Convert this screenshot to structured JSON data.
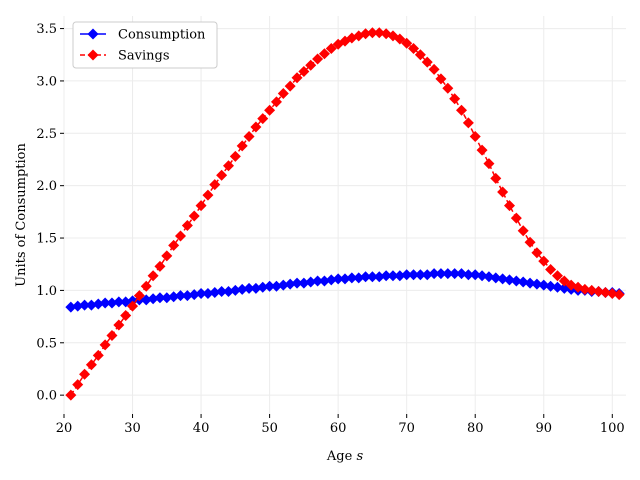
{
  "chart_data": {
    "type": "line",
    "xlabel_text": "Age ",
    "xlabel_var": "s",
    "ylabel": "Units of Consumption",
    "xlim": [
      20,
      102
    ],
    "ylim": [
      -0.18,
      3.62
    ],
    "xticks": [
      20,
      30,
      40,
      50,
      60,
      70,
      80,
      90,
      100
    ],
    "yticks": [
      0.0,
      0.5,
      1.0,
      1.5,
      2.0,
      2.5,
      3.0,
      3.5
    ],
    "ytick_labels": [
      "0.0",
      "0.5",
      "1.0",
      "1.5",
      "2.0",
      "2.5",
      "3.0",
      "3.5"
    ],
    "grid": true,
    "legend_position": "top-left",
    "x_ages": [
      21,
      22,
      23,
      24,
      25,
      26,
      27,
      28,
      29,
      30,
      31,
      32,
      33,
      34,
      35,
      36,
      37,
      38,
      39,
      40,
      41,
      42,
      43,
      44,
      45,
      46,
      47,
      48,
      49,
      50,
      51,
      52,
      53,
      54,
      55,
      56,
      57,
      58,
      59,
      60,
      61,
      62,
      63,
      64,
      65,
      66,
      67,
      68,
      69,
      70,
      71,
      72,
      73,
      74,
      75,
      76,
      77,
      78,
      79,
      80,
      81,
      82,
      83,
      84,
      85,
      86,
      87,
      88,
      89,
      90,
      91,
      92,
      93,
      94,
      95,
      96,
      97,
      98,
      99,
      100,
      101
    ],
    "series": [
      {
        "name": "Consumption",
        "color": "#0000ff",
        "linestyle": "solid",
        "marker": "diamond",
        "values": [
          0.84,
          0.85,
          0.86,
          0.86,
          0.87,
          0.88,
          0.88,
          0.89,
          0.89,
          0.9,
          0.91,
          0.91,
          0.92,
          0.93,
          0.93,
          0.94,
          0.95,
          0.95,
          0.96,
          0.97,
          0.97,
          0.98,
          0.99,
          0.99,
          1.0,
          1.01,
          1.02,
          1.02,
          1.03,
          1.04,
          1.04,
          1.05,
          1.06,
          1.07,
          1.07,
          1.08,
          1.09,
          1.09,
          1.1,
          1.11,
          1.11,
          1.12,
          1.12,
          1.13,
          1.13,
          1.13,
          1.14,
          1.14,
          1.14,
          1.15,
          1.15,
          1.15,
          1.15,
          1.16,
          1.16,
          1.16,
          1.16,
          1.16,
          1.15,
          1.15,
          1.14,
          1.13,
          1.12,
          1.11,
          1.1,
          1.09,
          1.08,
          1.07,
          1.06,
          1.05,
          1.04,
          1.03,
          1.02,
          1.01,
          1.0,
          1.0,
          0.99,
          0.99,
          0.98,
          0.98,
          0.97
        ]
      },
      {
        "name": "Savings",
        "color": "#ff0000",
        "linestyle": "dashed",
        "marker": "diamond",
        "values": [
          0.0,
          0.1,
          0.2,
          0.29,
          0.38,
          0.48,
          0.57,
          0.67,
          0.76,
          0.85,
          0.95,
          1.04,
          1.14,
          1.23,
          1.33,
          1.43,
          1.52,
          1.62,
          1.71,
          1.81,
          1.91,
          2.01,
          2.1,
          2.19,
          2.28,
          2.38,
          2.47,
          2.56,
          2.64,
          2.72,
          2.8,
          2.88,
          2.95,
          3.03,
          3.09,
          3.15,
          3.21,
          3.26,
          3.31,
          3.35,
          3.38,
          3.41,
          3.43,
          3.45,
          3.46,
          3.46,
          3.45,
          3.43,
          3.4,
          3.36,
          3.31,
          3.25,
          3.18,
          3.11,
          3.02,
          2.93,
          2.83,
          2.72,
          2.6,
          2.47,
          2.34,
          2.21,
          2.07,
          1.94,
          1.81,
          1.69,
          1.57,
          1.46,
          1.36,
          1.28,
          1.2,
          1.14,
          1.09,
          1.05,
          1.03,
          1.01,
          1.0,
          0.99,
          0.98,
          0.97,
          0.96
        ]
      }
    ]
  }
}
